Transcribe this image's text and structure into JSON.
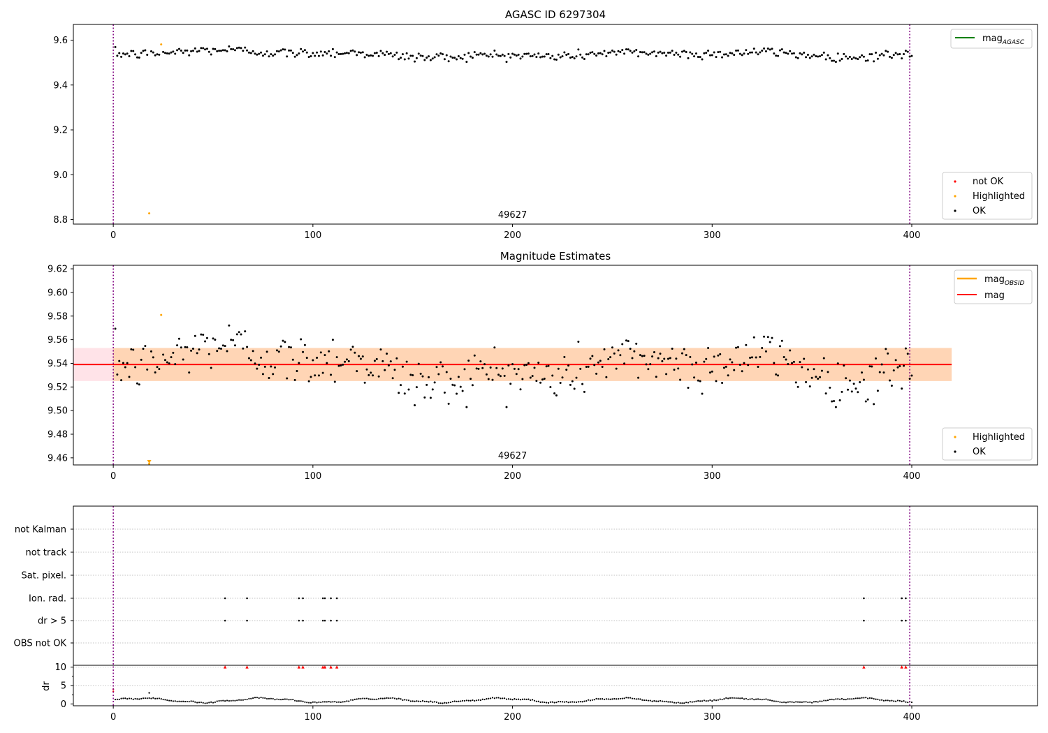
{
  "chart_data": [
    {
      "type": "scatter",
      "title": "AGASC ID 6297304",
      "xlim": [
        -20,
        463
      ],
      "ylim": [
        8.78,
        9.67
      ],
      "xticks": [
        0,
        100,
        200,
        300,
        400
      ],
      "yticks": [
        8.8,
        9.0,
        9.2,
        9.4,
        9.6
      ],
      "ytick_labels": [
        "8.8",
        "9.0",
        "9.2",
        "9.4",
        "9.6"
      ],
      "xtick_labels": [
        "0",
        "100",
        "200",
        "300",
        "400"
      ],
      "obsid_boundaries": [
        0,
        399
      ],
      "obsid_label": "49627",
      "obsid_label_x": 200,
      "lines": [
        {
          "name": "mag_AGASC",
          "label_main": "mag",
          "label_sub": "AGASC",
          "color": "#008000",
          "y": 9.553
        }
      ],
      "series": [
        {
          "name": "not OK",
          "color": "#ff0000",
          "points": []
        },
        {
          "name": "Highlighted",
          "color": "#ffa500",
          "points": [
            [
              18,
              8.828
            ],
            [
              24,
              9.581
            ]
          ]
        },
        {
          "name": "OK",
          "color": "#000000",
          "points": []
        }
      ],
      "legend_lines_position": "upper right",
      "legend_points_position": "lower right"
    },
    {
      "type": "scatter",
      "title": "Magnitude Estimates",
      "xlim": [
        -20,
        463
      ],
      "ylim": [
        9.454,
        9.623
      ],
      "xticks": [
        0,
        100,
        200,
        300,
        400
      ],
      "xtick_labels": [
        "0",
        "100",
        "200",
        "300",
        "400"
      ],
      "yticks": [
        9.46,
        9.48,
        9.5,
        9.52,
        9.54,
        9.56,
        9.58,
        9.6,
        9.62
      ],
      "ytick_labels": [
        "9.46",
        "9.48",
        "9.50",
        "9.52",
        "9.54",
        "9.56",
        "9.58",
        "9.60",
        "9.62"
      ],
      "obsid_boundaries": [
        0,
        399
      ],
      "obsid_label": "49627",
      "obsid_label_x": 200,
      "bands": [
        {
          "x": [
            -20,
            420
          ],
          "y": [
            9.525,
            9.553
          ],
          "color": "#ffc0cb",
          "alpha": 0.45
        },
        {
          "x": [
            0,
            420
          ],
          "y": [
            9.525,
            9.553
          ],
          "color": "#ffa500",
          "alpha": 0.22
        }
      ],
      "lines": [
        {
          "name": "mag_OBSID",
          "label_main": "mag",
          "label_sub": "OBSID",
          "color": "#ffa500",
          "y": 9.539
        },
        {
          "name": "mag",
          "label_main": "mag",
          "label_sub": "",
          "color": "#ff0000",
          "y": 9.539
        }
      ],
      "series": [
        {
          "name": "Highlighted",
          "color": "#ffa500",
          "points": [
            [
              18,
              9.455
            ],
            [
              24,
              9.581
            ]
          ]
        },
        {
          "name": "OK",
          "color": "#000000",
          "points": []
        }
      ],
      "legend_lines_position": "upper right",
      "legend_points_position": "lower right"
    },
    {
      "type": "scatter",
      "xlim": [
        -20,
        463
      ],
      "flag_categories": [
        "not Kalman",
        "not track",
        "Sat. pixel.",
        "Ion. rad.",
        "dr > 5",
        "OBS not OK"
      ],
      "flag_points": {
        "Ion. rad.": [
          56,
          67,
          93,
          95,
          105,
          106,
          109,
          112,
          376,
          395,
          397
        ],
        "dr > 5": [
          56,
          67,
          93,
          95,
          105,
          106,
          109,
          112,
          376,
          395,
          397
        ]
      },
      "dr_ylabel": "dr",
      "dr_yticks": [
        0,
        5,
        10
      ],
      "dr_ylim": [
        -0.5,
        10.5
      ],
      "dr_outliers": {
        "y": 10,
        "x": [
          56,
          67,
          93,
          95,
          105,
          106,
          109,
          112,
          376,
          395,
          397
        ],
        "color": "#ff0000"
      },
      "dr_extra": [
        [
          0,
          4.0
        ],
        [
          0,
          3.4
        ],
        [
          18,
          3.0
        ]
      ],
      "xticks": [
        0,
        100,
        200,
        300,
        400
      ],
      "xtick_labels": [
        "0",
        "100",
        "200",
        "300",
        "400"
      ],
      "obsid_boundaries": [
        0,
        399
      ]
    }
  ]
}
